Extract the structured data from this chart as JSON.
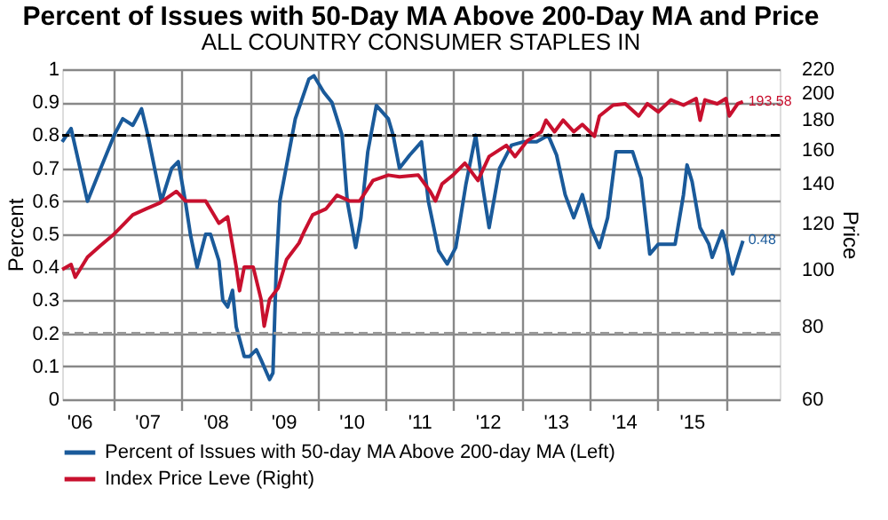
{
  "chart_data": {
    "type": "line",
    "title": "Percent of Issues with 50-Day MA Above 200-Day MA and Price",
    "subtitle": "ALL COUNTRY CONSUMER STAPLES IN",
    "ylabel": "Percent",
    "y2label": "Price",
    "xlim": [
      "2006-04-01",
      "2016-10-15"
    ],
    "xticks": [
      {
        "value": "2006-07-01",
        "label": "'06"
      },
      {
        "value": "2007-01-01",
        "label": null
      },
      {
        "value": "2007-07-01",
        "label": "'07"
      },
      {
        "value": "2008-01-01",
        "label": null
      },
      {
        "value": "2008-07-01",
        "label": "'08"
      },
      {
        "value": "2009-01-01",
        "label": null
      },
      {
        "value": "2009-07-01",
        "label": "'09"
      },
      {
        "value": "2010-01-01",
        "label": null
      },
      {
        "value": "2010-07-01",
        "label": "'10"
      },
      {
        "value": "2011-01-01",
        "label": null
      },
      {
        "value": "2011-07-01",
        "label": "'11"
      },
      {
        "value": "2012-01-01",
        "label": null
      },
      {
        "value": "2012-07-01",
        "label": "'12"
      },
      {
        "value": "2013-01-01",
        "label": null
      },
      {
        "value": "2013-07-01",
        "label": "'13"
      },
      {
        "value": "2014-01-01",
        "label": null
      },
      {
        "value": "2014-07-01",
        "label": "'14"
      },
      {
        "value": "2015-01-01",
        "label": null
      },
      {
        "value": "2015-07-01",
        "label": "'15"
      },
      {
        "value": "2016-01-01",
        "label": null
      }
    ],
    "ylim": [
      0,
      1
    ],
    "yticks": [
      0,
      0.1,
      0.2,
      0.3,
      0.4,
      0.5,
      0.6,
      0.7,
      0.8,
      0.9,
      1
    ],
    "y2lim": [
      60,
      220
    ],
    "y2ticks": [
      60,
      80,
      100,
      120,
      140,
      160,
      180,
      200,
      220
    ],
    "log": "y2",
    "grid": true,
    "legend": "bottom",
    "ref_lines": [
      {
        "axis": "y",
        "value": 0.8,
        "color": "#000000",
        "line_style": "dashed"
      },
      {
        "axis": "y",
        "value": 0.2,
        "color": "#999999",
        "line_style": "dashed"
      }
    ],
    "series": [
      {
        "name": "Percent of Issues with 50-day MA Above 200-day MA  (Left)",
        "color": "#1a5a9a",
        "x": [
          "2006-04-01",
          "2006-05-19",
          "2006-08-15",
          "2006-10-25",
          "2007-01-05",
          "2007-02-20",
          "2007-04-15",
          "2007-06-01",
          "2007-07-05",
          "2007-09-15",
          "2007-11-10",
          "2007-12-15",
          "2008-01-22",
          "2008-02-18",
          "2008-03-25",
          "2008-05-10",
          "2008-06-05",
          "2008-07-20",
          "2008-08-10",
          "2008-09-05",
          "2008-10-01",
          "2008-10-21",
          "2008-12-03",
          "2009-01-01",
          "2009-02-06",
          "2009-03-03",
          "2009-04-18",
          "2009-05-06",
          "2009-05-24",
          "2009-06-12",
          "2009-09-03",
          "2009-11-15",
          "2009-12-12",
          "2010-02-03",
          "2010-03-18",
          "2010-04-15",
          "2010-05-12",
          "2010-06-09",
          "2010-07-24",
          "2010-08-21",
          "2010-09-27",
          "2010-11-12",
          "2011-01-15",
          "2011-02-10",
          "2011-03-16",
          "2011-05-10",
          "2011-07-12",
          "2011-08-18",
          "2011-10-12",
          "2011-11-27",
          "2012-01-12",
          "2012-03-06",
          "2012-04-28",
          "2012-06-03",
          "2012-07-09",
          "2012-09-03",
          "2012-11-06",
          "2013-01-09",
          "2013-03-21",
          "2013-05-22",
          "2013-07-06",
          "2013-08-21",
          "2013-10-06",
          "2013-11-21",
          "2014-01-06",
          "2014-02-21",
          "2014-04-06",
          "2014-05-21",
          "2014-08-18",
          "2014-10-03",
          "2014-11-18",
          "2015-01-03",
          "2015-04-03",
          "2015-05-18",
          "2015-06-06",
          "2015-07-03",
          "2015-08-15",
          "2015-10-01",
          "2015-10-19",
          "2015-11-15",
          "2015-12-12",
          "2016-01-01",
          "2016-01-19",
          "2016-02-06",
          "2016-03-04",
          "2016-04-01"
        ],
        "values": [
          0.78,
          0.82,
          0.6,
          0.7,
          0.8,
          0.85,
          0.83,
          0.88,
          0.8,
          0.6,
          0.7,
          0.72,
          0.6,
          0.5,
          0.4,
          0.5,
          0.5,
          0.42,
          0.3,
          0.28,
          0.33,
          0.22,
          0.13,
          0.13,
          0.15,
          0.12,
          0.06,
          0.08,
          0.4,
          0.6,
          0.85,
          0.97,
          0.98,
          0.93,
          0.9,
          0.85,
          0.8,
          0.6,
          0.46,
          0.55,
          0.75,
          0.89,
          0.85,
          0.8,
          0.7,
          0.74,
          0.78,
          0.6,
          0.45,
          0.41,
          0.46,
          0.65,
          0.8,
          0.65,
          0.52,
          0.7,
          0.77,
          0.78,
          0.78,
          0.8,
          0.74,
          0.62,
          0.55,
          0.62,
          0.52,
          0.46,
          0.55,
          0.75,
          0.75,
          0.67,
          0.44,
          0.47,
          0.47,
          0.62,
          0.71,
          0.66,
          0.52,
          0.47,
          0.43,
          0.47,
          0.51,
          0.47,
          0.42,
          0.38,
          0.43,
          0.48
        ],
        "value_labels": [
          null,
          null,
          null,
          null,
          null,
          null,
          null,
          null,
          null,
          null,
          null,
          null,
          null,
          null,
          null,
          null,
          null,
          null,
          null,
          null,
          null,
          null,
          null,
          null,
          null,
          null,
          null,
          null,
          null,
          null,
          null,
          null,
          null,
          null,
          null,
          null,
          null,
          null,
          null,
          null,
          null,
          null,
          null,
          null,
          null,
          null,
          null,
          null,
          null,
          null,
          null,
          null,
          null,
          null,
          null,
          null,
          null,
          null,
          null,
          null,
          null,
          null,
          null,
          null,
          null,
          null,
          null,
          null,
          null,
          null,
          null,
          null,
          null,
          null,
          null,
          null,
          null,
          null,
          null,
          null,
          null,
          null,
          null,
          null,
          null,
          "0.48"
        ]
      },
      {
        "name": "Index Price Leve  (Right)",
        "color": "#c8102e",
        "axis": "y2",
        "x": [
          "2006-04-01",
          "2006-05-19",
          "2006-06-10",
          "2006-08-15",
          "2006-10-25",
          "2007-01-05",
          "2007-04-15",
          "2007-06-25",
          "2007-09-08",
          "2007-12-05",
          "2008-01-22",
          "2008-05-10",
          "2008-07-20",
          "2008-09-05",
          "2008-10-21",
          "2008-11-08",
          "2008-12-03",
          "2009-01-20",
          "2009-03-03",
          "2009-03-20",
          "2009-04-18",
          "2009-06-03",
          "2009-07-18",
          "2009-09-23",
          "2009-10-20",
          "2009-12-05",
          "2010-02-15",
          "2010-04-15",
          "2010-06-20",
          "2010-08-15",
          "2010-10-25",
          "2011-01-15",
          "2011-03-16",
          "2011-06-25",
          "2011-08-28",
          "2011-09-25",
          "2011-10-30",
          "2011-12-28",
          "2012-03-01",
          "2012-05-10",
          "2012-07-09",
          "2012-10-09",
          "2012-11-25",
          "2013-01-30",
          "2013-04-15",
          "2013-05-10",
          "2013-06-25",
          "2013-08-10",
          "2013-10-06",
          "2013-11-21",
          "2014-01-25",
          "2014-02-21",
          "2014-05-05",
          "2014-07-10",
          "2014-09-20",
          "2014-11-05",
          "2015-01-03",
          "2015-03-12",
          "2015-05-18",
          "2015-07-25",
          "2015-08-15",
          "2015-09-10",
          "2015-11-15",
          "2016-01-01",
          "2016-01-19",
          "2016-03-04",
          "2016-04-01"
        ],
        "values": [
          100,
          102,
          97,
          105,
          110,
          115,
          124,
          127,
          130,
          136,
          131,
          131,
          120,
          123,
          101,
          92,
          101,
          101,
          89,
          80,
          89,
          93,
          104,
          111,
          116,
          124,
          127,
          134,
          131,
          131,
          142,
          145,
          144,
          145,
          136,
          131,
          140,
          145,
          152,
          142,
          156,
          163,
          156,
          166,
          172,
          180,
          172,
          180,
          172,
          177,
          169,
          183,
          191,
          192,
          183,
          192,
          186,
          195,
          191,
          196,
          180,
          195,
          192,
          196,
          183,
          192,
          193.58
        ],
        "value_labels": [
          null,
          null,
          null,
          null,
          null,
          null,
          null,
          null,
          null,
          null,
          null,
          null,
          null,
          null,
          null,
          null,
          null,
          null,
          null,
          null,
          null,
          null,
          null,
          null,
          null,
          null,
          null,
          null,
          null,
          null,
          null,
          null,
          null,
          null,
          null,
          null,
          null,
          null,
          null,
          null,
          null,
          null,
          null,
          null,
          null,
          null,
          null,
          null,
          null,
          null,
          null,
          null,
          null,
          null,
          null,
          null,
          null,
          null,
          null,
          null,
          null,
          null,
          null,
          null,
          null,
          null,
          "193.58"
        ]
      }
    ]
  }
}
